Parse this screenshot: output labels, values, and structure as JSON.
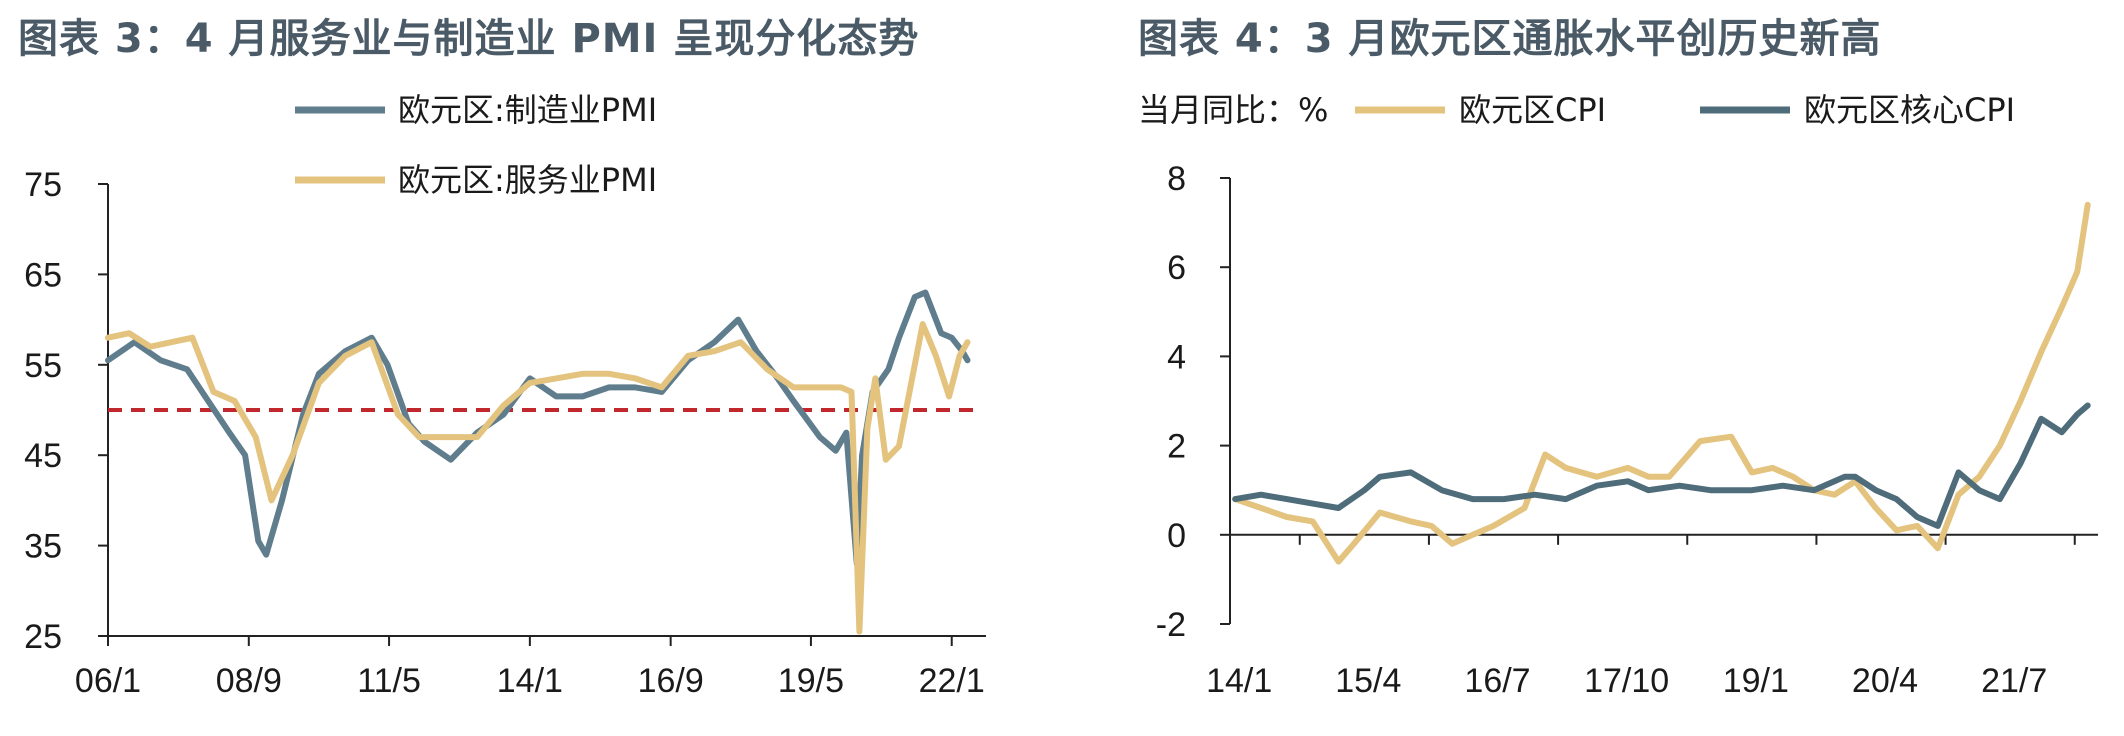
{
  "colors": {
    "manufacturing": "#5f7d8c",
    "services": "#e3c37e",
    "threshold": "#c0282d",
    "cpi": "#e3c37e",
    "core_cpi": "#4f6c7b",
    "title": "#4a5a66"
  },
  "chart_data": [
    {
      "type": "line",
      "title": "图表 3：4 月服务业与制造业 PMI 呈现分化态势",
      "x_tick_labels": [
        "06/1",
        "08/9",
        "11/5",
        "14/1",
        "16/9",
        "19/5",
        "22/1"
      ],
      "ylim": [
        25,
        75
      ],
      "y_ticks": [
        75,
        65,
        55,
        45,
        35,
        25
      ],
      "reference_line": 50,
      "legend_position": "top-center",
      "series": [
        {
          "name": "欧元区:制造业PMI",
          "x": [
            2006.0,
            2006.5,
            2007.0,
            2007.5,
            2007.9,
            2008.3,
            2008.6,
            2008.85,
            2009.0,
            2009.3,
            2009.7,
            2010.0,
            2010.5,
            2011.0,
            2011.3,
            2011.7,
            2012.0,
            2012.5,
            2013.0,
            2013.5,
            2014.0,
            2014.5,
            2015.0,
            2015.5,
            2016.0,
            2016.5,
            2017.0,
            2017.5,
            2017.95,
            2018.3,
            2018.7,
            2019.0,
            2019.5,
            2019.8,
            2020.0,
            2020.2,
            2020.3,
            2020.5,
            2020.8,
            2021.0,
            2021.3,
            2021.5,
            2021.8,
            2022.0,
            2022.2,
            2022.3
          ],
          "values": [
            55.5,
            57.5,
            55.5,
            54.5,
            51.0,
            47.5,
            45.0,
            35.5,
            34.0,
            40.0,
            49.5,
            54.0,
            56.5,
            58.0,
            55.0,
            48.5,
            46.5,
            44.5,
            47.5,
            49.5,
            53.5,
            51.5,
            51.5,
            52.5,
            52.5,
            52.0,
            55.5,
            57.5,
            60.0,
            56.5,
            53.5,
            51.0,
            47.0,
            45.5,
            47.5,
            33.0,
            45.0,
            52.0,
            54.5,
            58.0,
            62.5,
            63.0,
            58.5,
            58.0,
            56.5,
            55.5
          ]
        },
        {
          "name": "欧元区:服务业PMI",
          "x": [
            2006.0,
            2006.4,
            2006.8,
            2007.2,
            2007.6,
            2008.0,
            2008.4,
            2008.8,
            2009.1,
            2009.5,
            2010.0,
            2010.5,
            2011.0,
            2011.5,
            2011.9,
            2012.5,
            2013.0,
            2013.5,
            2014.0,
            2014.5,
            2015.0,
            2015.5,
            2016.0,
            2016.5,
            2017.0,
            2017.5,
            2018.0,
            2018.5,
            2019.0,
            2019.5,
            2019.9,
            2020.1,
            2020.25,
            2020.4,
            2020.55,
            2020.75,
            2021.0,
            2021.2,
            2021.45,
            2021.7,
            2021.95,
            2022.15,
            2022.3
          ],
          "values": [
            58.0,
            58.5,
            57.0,
            57.5,
            58.0,
            52.0,
            51.0,
            47.0,
            40.0,
            45.0,
            53.0,
            56.0,
            57.5,
            49.5,
            47.0,
            47.0,
            47.0,
            50.5,
            53.0,
            53.5,
            54.0,
            54.0,
            53.5,
            52.5,
            56.0,
            56.5,
            57.5,
            54.5,
            52.5,
            52.5,
            52.5,
            52.0,
            25.5,
            48.0,
            53.5,
            44.5,
            46.0,
            52.0,
            59.5,
            56.0,
            51.5,
            56.0,
            57.5
          ]
        }
      ]
    },
    {
      "type": "line",
      "title": "图表 4：3 月欧元区通胀水平创历史新高",
      "unit_label": "当月同比：%",
      "x_tick_labels": [
        "14/1",
        "15/4",
        "16/7",
        "17/10",
        "19/1",
        "20/4",
        "21/7"
      ],
      "ylim": [
        -2,
        8
      ],
      "y_ticks": [
        8,
        6,
        4,
        2,
        0,
        -2
      ],
      "legend_position": "top",
      "series": [
        {
          "name": "欧元区CPI",
          "x": [
            2014.0,
            2014.25,
            2014.5,
            2014.75,
            2015.0,
            2015.15,
            2015.4,
            2015.7,
            2015.9,
            2016.1,
            2016.3,
            2016.5,
            2016.8,
            2017.0,
            2017.2,
            2017.5,
            2017.8,
            2018.0,
            2018.2,
            2018.5,
            2018.8,
            2019.0,
            2019.2,
            2019.4,
            2019.6,
            2019.8,
            2020.0,
            2020.2,
            2020.4,
            2020.6,
            2020.8,
            2021.0,
            2021.2,
            2021.4,
            2021.6,
            2021.8,
            2022.0,
            2022.15,
            2022.25
          ],
          "values": [
            0.8,
            0.6,
            0.4,
            0.3,
            -0.6,
            -0.2,
            0.5,
            0.3,
            0.2,
            -0.2,
            0.0,
            0.2,
            0.6,
            1.8,
            1.5,
            1.3,
            1.5,
            1.3,
            1.3,
            2.1,
            2.2,
            1.4,
            1.5,
            1.3,
            1.0,
            0.9,
            1.2,
            0.6,
            0.1,
            0.2,
            -0.3,
            0.9,
            1.3,
            2.0,
            3.0,
            4.1,
            5.1,
            5.9,
            7.4
          ]
        },
        {
          "name": "欧元区核心CPI",
          "x": [
            2014.0,
            2014.25,
            2014.5,
            2014.75,
            2015.0,
            2015.25,
            2015.4,
            2015.7,
            2016.0,
            2016.3,
            2016.6,
            2016.9,
            2017.2,
            2017.5,
            2017.8,
            2018.0,
            2018.3,
            2018.6,
            2019.0,
            2019.3,
            2019.6,
            2019.9,
            2020.0,
            2020.2,
            2020.4,
            2020.6,
            2020.8,
            2021.0,
            2021.2,
            2021.4,
            2021.6,
            2021.8,
            2022.0,
            2022.15,
            2022.25
          ],
          "values": [
            0.8,
            0.9,
            0.8,
            0.7,
            0.6,
            1.0,
            1.3,
            1.4,
            1.0,
            0.8,
            0.8,
            0.9,
            0.8,
            1.1,
            1.2,
            1.0,
            1.1,
            1.0,
            1.0,
            1.1,
            1.0,
            1.3,
            1.3,
            1.0,
            0.8,
            0.4,
            0.2,
            1.4,
            1.0,
            0.8,
            1.6,
            2.6,
            2.3,
            2.7,
            2.9
          ]
        }
      ]
    }
  ]
}
